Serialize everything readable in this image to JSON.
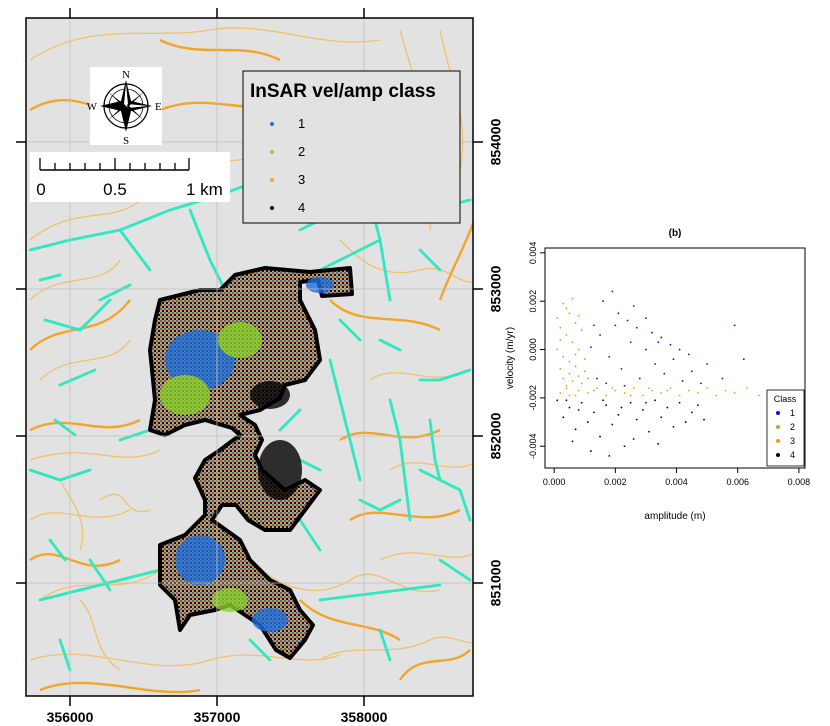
{
  "map": {
    "x_ticks": [
      "356000",
      "357000",
      "358000"
    ],
    "y_ticks": [
      "851000",
      "852000",
      "853000",
      "854000"
    ],
    "compass": {
      "n": "N",
      "s": "S",
      "e": "E",
      "w": "W"
    },
    "scalebar": {
      "labels": [
        "0",
        "0.5",
        "1 km"
      ]
    },
    "legend": {
      "title": "InSAR vel/amp class",
      "items": [
        {
          "label": "1",
          "color": "#1f6fe0"
        },
        {
          "label": "2",
          "color": "#8ad12d"
        },
        {
          "label": "3",
          "color": "#f5a623"
        },
        {
          "label": "4",
          "color": "#000000"
        }
      ]
    },
    "colors": {
      "background": "#e2e2e2",
      "contour_thin": "#f3c06b",
      "contour_thick": "#f2a52a",
      "network": "#2ee8c0",
      "boundary": "#000000"
    }
  },
  "chart_data": {
    "type": "scatter",
    "title": "(b)",
    "xlabel": "amplitude (m)",
    "ylabel": "velocity (m/yr)",
    "xlim": [
      -0.0003,
      0.0082
    ],
    "ylim": [
      -0.0049,
      0.0042
    ],
    "x_ticks": [
      "0.000",
      "0.002",
      "0.004",
      "0.006",
      "0.008"
    ],
    "y_ticks": [
      "-0.004",
      "-0.002",
      "0.000",
      "0.002",
      "0.004"
    ],
    "legend_title": "Class",
    "legend_position": "right",
    "series": [
      {
        "name": "1",
        "color": "#1010c8",
        "points": [
          [
            0.0012,
            0.0001
          ],
          [
            0.0015,
            0.0006
          ],
          [
            0.0018,
            -0.0003
          ],
          [
            0.002,
            0.001
          ],
          [
            0.0022,
            -0.0008
          ],
          [
            0.0025,
            0.0003
          ],
          [
            0.0028,
            -0.0012
          ],
          [
            0.003,
            0.0
          ],
          [
            0.0033,
            -0.0006
          ],
          [
            0.0036,
            -0.001
          ],
          [
            0.0039,
            -0.0004
          ],
          [
            0.0042,
            -0.0013
          ],
          [
            0.0045,
            -0.0009
          ],
          [
            0.0048,
            -0.0014
          ],
          [
            0.0016,
            0.002
          ],
          [
            0.0019,
            0.0024
          ],
          [
            0.0021,
            0.0015
          ],
          [
            0.0024,
            0.0012
          ],
          [
            0.0027,
            0.0009
          ],
          [
            0.0032,
            0.0007
          ],
          [
            0.0035,
            0.0005
          ],
          [
            0.0038,
            0.0002
          ],
          [
            0.0041,
            0.0
          ],
          [
            0.005,
            -0.0006
          ],
          [
            0.0055,
            -0.0012
          ],
          [
            0.0059,
            0.001
          ],
          [
            0.0062,
            -0.0004
          ],
          [
            0.0014,
            -0.0012
          ],
          [
            0.0017,
            -0.0014
          ],
          [
            0.0023,
            -0.0015
          ],
          [
            0.0026,
            0.0018
          ],
          [
            0.003,
            0.0013
          ],
          [
            0.0013,
            0.001
          ],
          [
            0.0034,
            0.0003
          ],
          [
            0.0044,
            -0.0002
          ]
        ]
      },
      {
        "name": "2",
        "color": "#7cc43a",
        "points": [
          [
            0.0001,
            0.0013
          ],
          [
            0.0002,
            0.0009
          ],
          [
            0.0003,
            0.0019
          ],
          [
            0.0004,
            0.0006
          ],
          [
            0.0005,
            0.0015
          ],
          [
            0.0006,
            0.0003
          ],
          [
            0.0007,
            0.0011
          ],
          [
            0.0008,
            0.0
          ],
          [
            0.0009,
            0.0008
          ],
          [
            0.001,
            -0.0004
          ],
          [
            0.0002,
            -0.0008
          ],
          [
            0.0003,
            -0.0012
          ],
          [
            0.0004,
            -0.0015
          ],
          [
            0.0005,
            -0.001
          ],
          [
            0.0006,
            -0.0013
          ],
          [
            0.0007,
            -0.0007
          ],
          [
            0.0008,
            -0.0011
          ],
          [
            0.0009,
            -0.0014
          ],
          [
            0.001,
            -0.0009
          ],
          [
            0.0011,
            -0.0012
          ],
          [
            0.0001,
            0.0
          ],
          [
            0.0002,
            0.0004
          ],
          [
            0.0004,
            0.0017
          ],
          [
            0.0006,
            0.0021
          ],
          [
            0.0008,
            0.0014
          ],
          [
            0.0003,
            -0.0003
          ],
          [
            0.0005,
            -0.0005
          ],
          [
            0.0007,
            -0.0002
          ]
        ]
      },
      {
        "name": "3",
        "color": "#f29a1c",
        "points": [
          [
            0.0002,
            -0.0018
          ],
          [
            0.0005,
            -0.0019
          ],
          [
            0.0008,
            -0.0017
          ],
          [
            0.0011,
            -0.0018
          ],
          [
            0.0014,
            -0.0016
          ],
          [
            0.0017,
            -0.0019
          ],
          [
            0.002,
            -0.0017
          ],
          [
            0.0023,
            -0.0018
          ],
          [
            0.0026,
            -0.0016
          ],
          [
            0.0029,
            -0.0019
          ],
          [
            0.0032,
            -0.0017
          ],
          [
            0.0035,
            -0.0018
          ],
          [
            0.0038,
            -0.0016
          ],
          [
            0.0041,
            -0.0019
          ],
          [
            0.0044,
            -0.0017
          ],
          [
            0.0047,
            -0.0018
          ],
          [
            0.005,
            -0.0016
          ],
          [
            0.0053,
            -0.0019
          ],
          [
            0.0056,
            -0.0017
          ],
          [
            0.0059,
            -0.0018
          ],
          [
            0.0063,
            -0.0016
          ],
          [
            0.0067,
            -0.0019
          ],
          [
            0.0071,
            -0.0017
          ],
          [
            0.0004,
            -0.0016
          ],
          [
            0.0007,
            -0.0019
          ],
          [
            0.0013,
            -0.0017
          ],
          [
            0.0019,
            -0.0016
          ],
          [
            0.0025,
            -0.0019
          ],
          [
            0.0031,
            -0.0016
          ],
          [
            0.0037,
            -0.0017
          ]
        ]
      },
      {
        "name": "4",
        "color": "#000000",
        "points": [
          [
            0.0001,
            -0.0021
          ],
          [
            0.0003,
            -0.0028
          ],
          [
            0.0005,
            -0.0024
          ],
          [
            0.0007,
            -0.0033
          ],
          [
            0.0009,
            -0.0022
          ],
          [
            0.0011,
            -0.003
          ],
          [
            0.0013,
            -0.0026
          ],
          [
            0.0015,
            -0.0036
          ],
          [
            0.0017,
            -0.0023
          ],
          [
            0.0019,
            -0.0031
          ],
          [
            0.0021,
            -0.0027
          ],
          [
            0.0023,
            -0.004
          ],
          [
            0.0025,
            -0.0022
          ],
          [
            0.0027,
            -0.0029
          ],
          [
            0.0029,
            -0.0025
          ],
          [
            0.0031,
            -0.0034
          ],
          [
            0.0033,
            -0.0021
          ],
          [
            0.0035,
            -0.0028
          ],
          [
            0.0037,
            -0.0024
          ],
          [
            0.0039,
            -0.0032
          ],
          [
            0.0041,
            -0.0022
          ],
          [
            0.0043,
            -0.003
          ],
          [
            0.0045,
            -0.0026
          ],
          [
            0.0047,
            -0.0023
          ],
          [
            0.0049,
            -0.0029
          ],
          [
            0.0006,
            -0.0038
          ],
          [
            0.0012,
            -0.0042
          ],
          [
            0.0018,
            -0.0044
          ],
          [
            0.0026,
            -0.0037
          ],
          [
            0.0034,
            -0.0039
          ],
          [
            0.0004,
            -0.0021
          ],
          [
            0.0008,
            -0.0025
          ],
          [
            0.0016,
            -0.0021
          ],
          [
            0.0022,
            -0.0024
          ],
          [
            0.003,
            -0.0022
          ]
        ]
      }
    ]
  }
}
